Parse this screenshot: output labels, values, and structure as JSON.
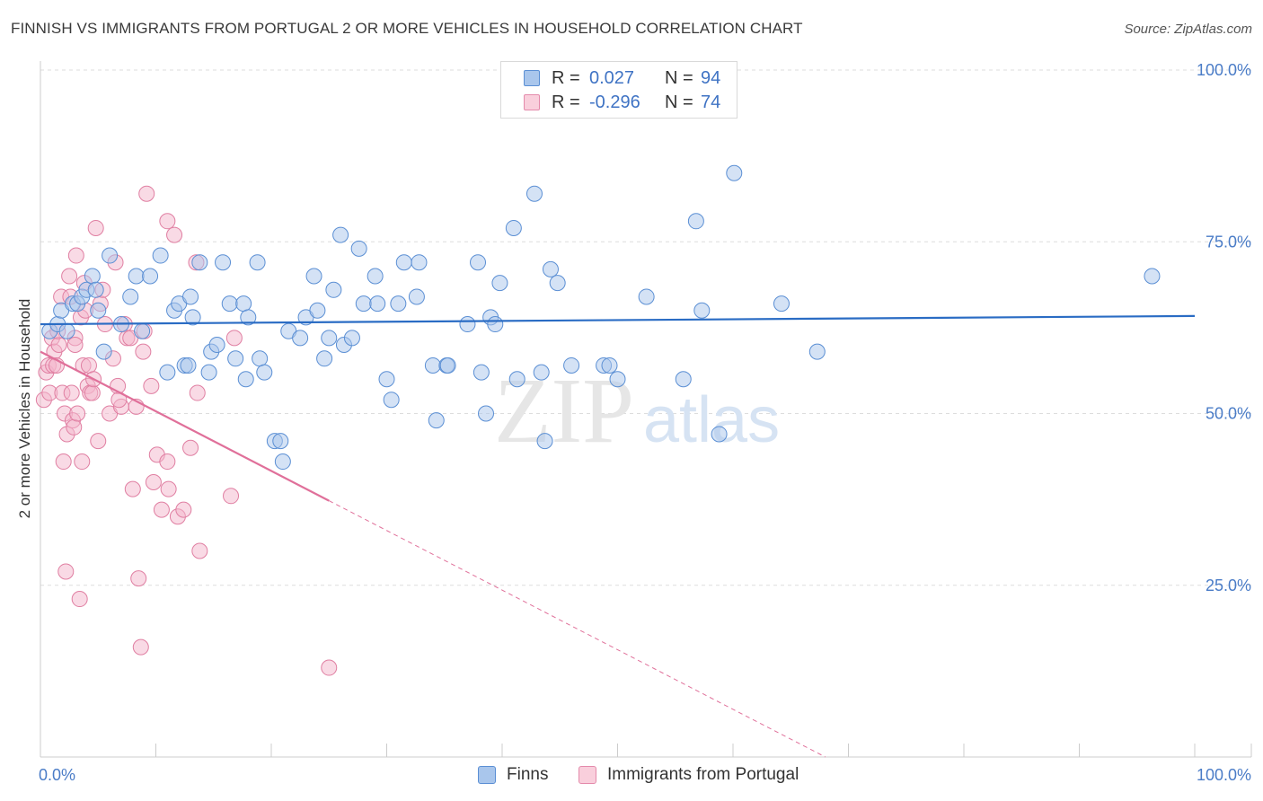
{
  "header": {
    "title": "FINNISH VS IMMIGRANTS FROM PORTUGAL 2 OR MORE VEHICLES IN HOUSEHOLD CORRELATION CHART",
    "source": "Source: ZipAtlas.com"
  },
  "legend": {
    "rows": [
      {
        "r_label": "R =",
        "r_value": "0.027",
        "n_label": "N =",
        "n_value": "94"
      },
      {
        "r_label": "R =",
        "r_value": "-0.296",
        "n_label": "N =",
        "n_value": "74"
      }
    ]
  },
  "bottom_legend": {
    "finns": "Finns",
    "portugal": "Immigrants from Portugal"
  },
  "watermark": {
    "zip": "ZIP",
    "atlas": "atlas"
  },
  "colors": {
    "finns_fill": "#a9c6ec",
    "finns_stroke": "#5b8fd4",
    "finns_line": "#2a6cc4",
    "portugal_fill": "#f4b6cb",
    "portugal_stroke": "#e07fa2",
    "portugal_line": "#e0709a",
    "tick_text": "#4a7cc7",
    "grid": "#dddddd"
  },
  "chart_data": {
    "type": "scatter",
    "title": "FINNISH VS IMMIGRANTS FROM PORTUGAL 2 OR MORE VEHICLES IN HOUSEHOLD CORRELATION CHART",
    "xlabel": "",
    "ylabel": "2 or more Vehicles in Household",
    "xlim": [
      0,
      100
    ],
    "ylim": [
      0,
      102
    ],
    "x_tick_labels": [
      "0.0%",
      "100.0%"
    ],
    "y_ticks": [
      25,
      50,
      75,
      100
    ],
    "y_tick_labels": [
      "25.0%",
      "50.0%",
      "75.0%",
      "100.0%"
    ],
    "series": [
      {
        "name": "Finns",
        "R": 0.027,
        "N": 94,
        "trend": {
          "x": [
            0,
            100
          ],
          "y": [
            63.0,
            64.2
          ],
          "solid_to": 100
        },
        "points": [
          [
            0.8,
            62
          ],
          [
            1.5,
            63
          ],
          [
            1.8,
            65
          ],
          [
            2.3,
            62
          ],
          [
            2.8,
            66
          ],
          [
            3.2,
            66
          ],
          [
            3.6,
            67
          ],
          [
            4.0,
            68
          ],
          [
            4.5,
            70
          ],
          [
            5.0,
            65
          ],
          [
            5.5,
            59
          ],
          [
            6.0,
            73
          ],
          [
            7.0,
            63
          ],
          [
            7.8,
            67
          ],
          [
            8.3,
            70
          ],
          [
            8.8,
            62
          ],
          [
            9.5,
            70
          ],
          [
            10.4,
            73
          ],
          [
            11.0,
            56
          ],
          [
            11.6,
            65
          ],
          [
            12.0,
            66
          ],
          [
            12.5,
            57
          ],
          [
            13.0,
            67
          ],
          [
            13.2,
            64
          ],
          [
            13.8,
            72
          ],
          [
            14.6,
            56
          ],
          [
            14.8,
            59
          ],
          [
            15.3,
            60
          ],
          [
            15.8,
            72
          ],
          [
            16.4,
            66
          ],
          [
            16.9,
            58
          ],
          [
            17.6,
            66
          ],
          [
            17.8,
            55
          ],
          [
            18.0,
            64
          ],
          [
            18.8,
            72
          ],
          [
            19.0,
            58
          ],
          [
            19.4,
            56
          ],
          [
            20.3,
            46
          ],
          [
            20.8,
            46
          ],
          [
            21.0,
            43
          ],
          [
            21.5,
            62
          ],
          [
            22.5,
            61
          ],
          [
            23.0,
            64
          ],
          [
            23.7,
            70
          ],
          [
            24.0,
            65
          ],
          [
            24.6,
            58
          ],
          [
            25.0,
            61
          ],
          [
            25.4,
            68
          ],
          [
            26.0,
            76
          ],
          [
            26.3,
            60
          ],
          [
            27.0,
            61
          ],
          [
            27.6,
            74
          ],
          [
            28.0,
            66
          ],
          [
            29.0,
            70
          ],
          [
            29.2,
            66
          ],
          [
            30.0,
            55
          ],
          [
            30.4,
            52
          ],
          [
            31.0,
            66
          ],
          [
            31.5,
            72
          ],
          [
            32.6,
            67
          ],
          [
            32.8,
            72
          ],
          [
            34.0,
            57
          ],
          [
            34.3,
            49
          ],
          [
            35.2,
            57
          ],
          [
            35.3,
            57
          ],
          [
            37.0,
            63
          ],
          [
            37.9,
            72
          ],
          [
            38.2,
            56
          ],
          [
            38.6,
            50
          ],
          [
            39.0,
            64
          ],
          [
            39.4,
            63
          ],
          [
            39.8,
            69
          ],
          [
            41.0,
            77
          ],
          [
            41.3,
            55
          ],
          [
            42.8,
            82
          ],
          [
            43.4,
            56
          ],
          [
            43.7,
            46
          ],
          [
            44.2,
            71
          ],
          [
            44.8,
            69
          ],
          [
            46.0,
            57
          ],
          [
            48.8,
            57
          ],
          [
            49.3,
            57
          ],
          [
            50.0,
            55
          ],
          [
            52.5,
            67
          ],
          [
            55.7,
            55
          ],
          [
            56.8,
            78
          ],
          [
            57.3,
            65
          ],
          [
            58.8,
            47
          ],
          [
            60.1,
            85
          ],
          [
            64.2,
            66
          ],
          [
            67.3,
            59
          ],
          [
            96.3,
            70
          ],
          [
            4.8,
            68
          ],
          [
            12.8,
            57
          ]
        ]
      },
      {
        "name": "Immigrants from Portugal",
        "R": -0.296,
        "N": 74,
        "trend": {
          "x": [
            0,
            68
          ],
          "y": [
            59.0,
            0.0
          ],
          "solid_to": 25
        },
        "points": [
          [
            0.3,
            52
          ],
          [
            0.5,
            56
          ],
          [
            0.7,
            57
          ],
          [
            0.8,
            53
          ],
          [
            1.0,
            61
          ],
          [
            1.1,
            57
          ],
          [
            1.2,
            59
          ],
          [
            1.4,
            57
          ],
          [
            1.6,
            60
          ],
          [
            1.8,
            67
          ],
          [
            1.9,
            53
          ],
          [
            2.0,
            43
          ],
          [
            2.1,
            50
          ],
          [
            2.2,
            27
          ],
          [
            2.3,
            47
          ],
          [
            2.5,
            70
          ],
          [
            2.6,
            67
          ],
          [
            2.7,
            53
          ],
          [
            2.8,
            49
          ],
          [
            2.9,
            48
          ],
          [
            3.0,
            61
          ],
          [
            3.1,
            73
          ],
          [
            3.2,
            50
          ],
          [
            3.4,
            23
          ],
          [
            3.5,
            64
          ],
          [
            3.6,
            43
          ],
          [
            3.7,
            57
          ],
          [
            3.8,
            69
          ],
          [
            3.9,
            65
          ],
          [
            4.1,
            54
          ],
          [
            4.2,
            57
          ],
          [
            4.3,
            53
          ],
          [
            4.5,
            53
          ],
          [
            4.8,
            77
          ],
          [
            5.0,
            46
          ],
          [
            5.2,
            66
          ],
          [
            5.4,
            68
          ],
          [
            5.6,
            63
          ],
          [
            6.0,
            50
          ],
          [
            6.3,
            58
          ],
          [
            6.5,
            72
          ],
          [
            6.7,
            54
          ],
          [
            7.0,
            51
          ],
          [
            7.3,
            63
          ],
          [
            7.5,
            61
          ],
          [
            7.8,
            61
          ],
          [
            8.0,
            39
          ],
          [
            8.3,
            51
          ],
          [
            8.5,
            26
          ],
          [
            8.7,
            16
          ],
          [
            8.9,
            59
          ],
          [
            9.0,
            62
          ],
          [
            9.2,
            82
          ],
          [
            9.6,
            54
          ],
          [
            9.8,
            40
          ],
          [
            10.1,
            44
          ],
          [
            10.5,
            36
          ],
          [
            11.0,
            43
          ],
          [
            11.0,
            78
          ],
          [
            11.1,
            39
          ],
          [
            11.6,
            76
          ],
          [
            11.9,
            35
          ],
          [
            12.4,
            36
          ],
          [
            13.0,
            45
          ],
          [
            13.5,
            72
          ],
          [
            13.6,
            53
          ],
          [
            13.8,
            30
          ],
          [
            16.5,
            38
          ],
          [
            16.8,
            61
          ],
          [
            25.0,
            13
          ],
          [
            1.5,
            62
          ],
          [
            3.0,
            60
          ],
          [
            4.6,
            55
          ],
          [
            6.8,
            52
          ]
        ]
      }
    ]
  }
}
